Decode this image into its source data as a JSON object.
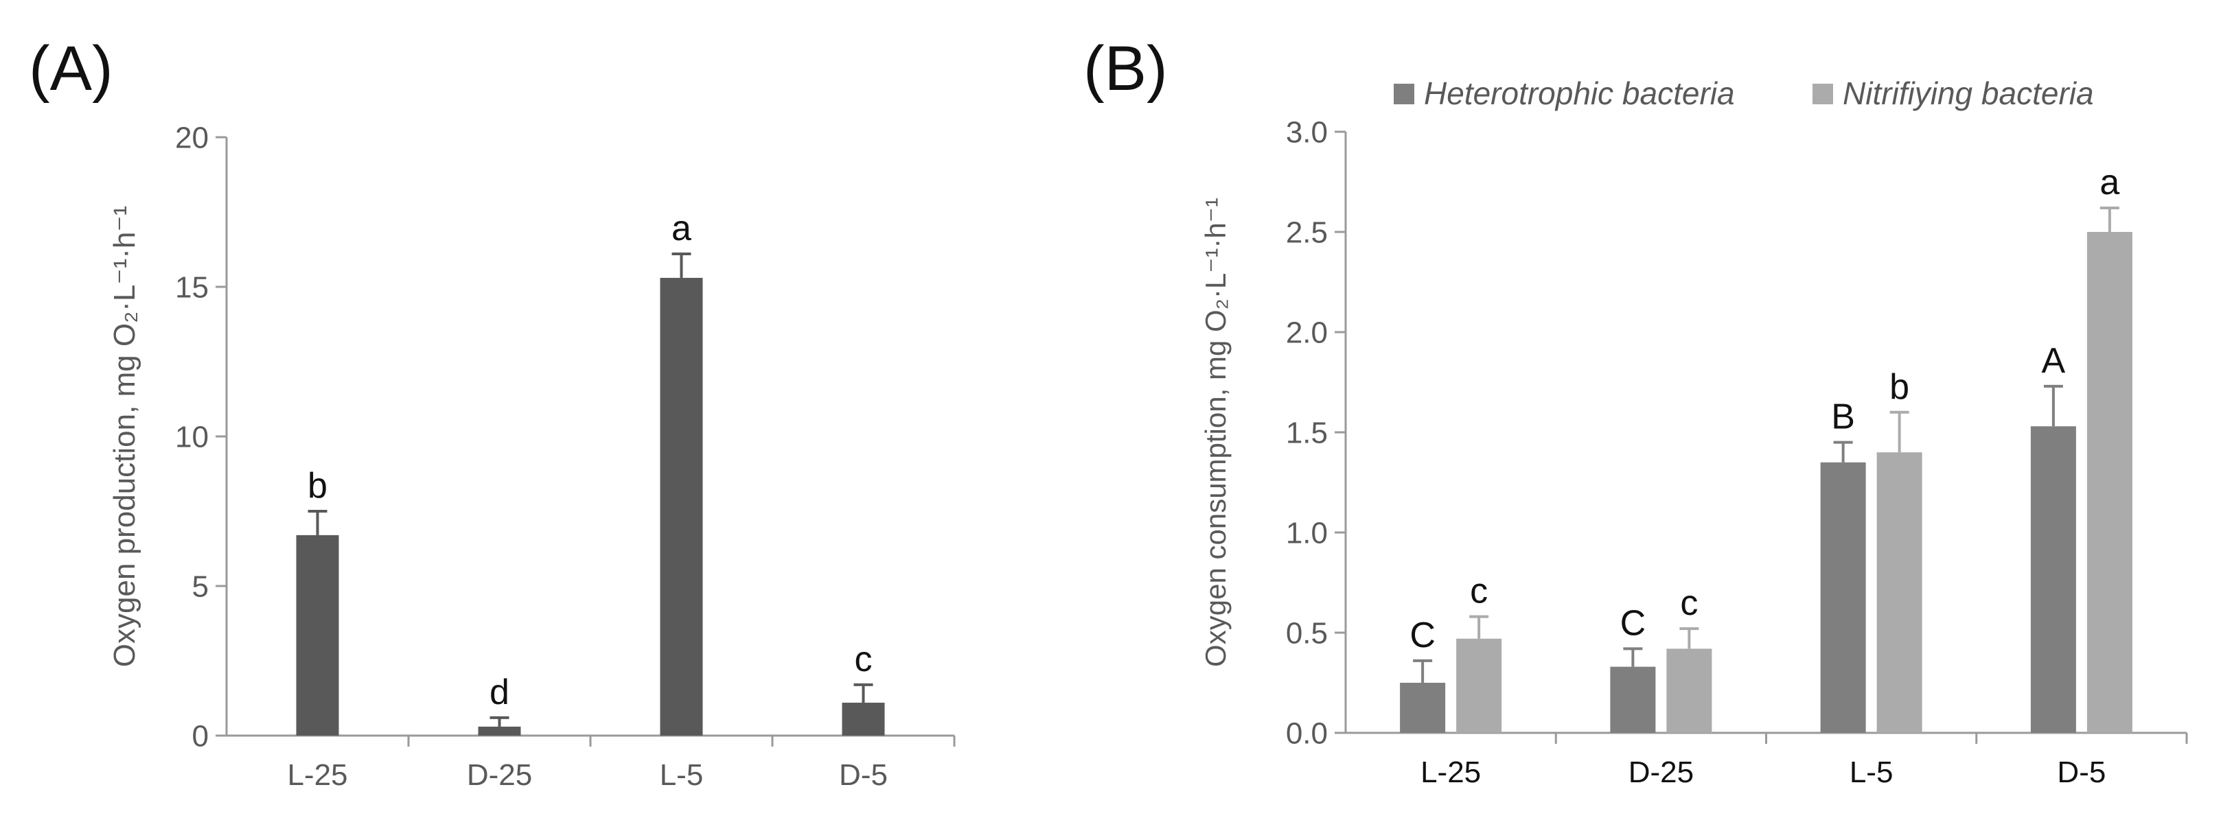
{
  "colors": {
    "panel_a_bar": "#595959",
    "heterotrophic": "#7f7f7f",
    "nitrifying": "#ababab",
    "axis": "#9a9a9a",
    "tick_text": "#595959"
  },
  "panel_a": {
    "label": "(A)"
  },
  "panel_b": {
    "label": "(B)"
  },
  "chart_data": [
    {
      "type": "bar",
      "panel": "A",
      "categories": [
        "L-25",
        "D-25",
        "L-5",
        "D-5"
      ],
      "series": [
        {
          "name": "Oxygen production",
          "values": [
            6.7,
            0.3,
            15.3,
            1.1
          ],
          "errors": [
            0.8,
            0.3,
            0.8,
            0.6
          ]
        }
      ],
      "letters": [
        "b",
        "d",
        "a",
        "c"
      ],
      "ylabel": "Oxygen production, mg O₂·L⁻¹·h⁻¹",
      "ylim": [
        0,
        20
      ],
      "yticks": [
        0,
        5,
        10,
        15,
        20
      ],
      "ytick_labels": [
        "0",
        "5",
        "10",
        "15",
        "20"
      ],
      "grid": false,
      "legend": "none"
    },
    {
      "type": "bar",
      "panel": "B",
      "categories": [
        "L-25",
        "D-25",
        "L-5",
        "D-5"
      ],
      "series": [
        {
          "name": "Heterotrophic bacteria",
          "values": [
            0.25,
            0.33,
            1.35,
            1.53
          ],
          "errors": [
            0.11,
            0.09,
            0.1,
            0.2
          ],
          "letters": [
            "C",
            "C",
            "B",
            "A"
          ]
        },
        {
          "name": "Nitrifiying bacteria",
          "values": [
            0.47,
            0.42,
            1.4,
            2.5
          ],
          "errors": [
            0.11,
            0.1,
            0.2,
            0.12
          ],
          "letters": [
            "c",
            "c",
            "b",
            "a"
          ]
        }
      ],
      "ylabel": "Oxygen consumption, mg O₂·L⁻¹·h⁻¹",
      "ylim": [
        0,
        3
      ],
      "yticks": [
        0,
        0.5,
        1,
        1.5,
        2,
        2.5,
        3
      ],
      "ytick_labels": [
        "0.0",
        "0.5",
        "1.0",
        "1.5",
        "2.0",
        "2.5",
        "3.0"
      ],
      "grid": false,
      "legend": "top"
    }
  ]
}
